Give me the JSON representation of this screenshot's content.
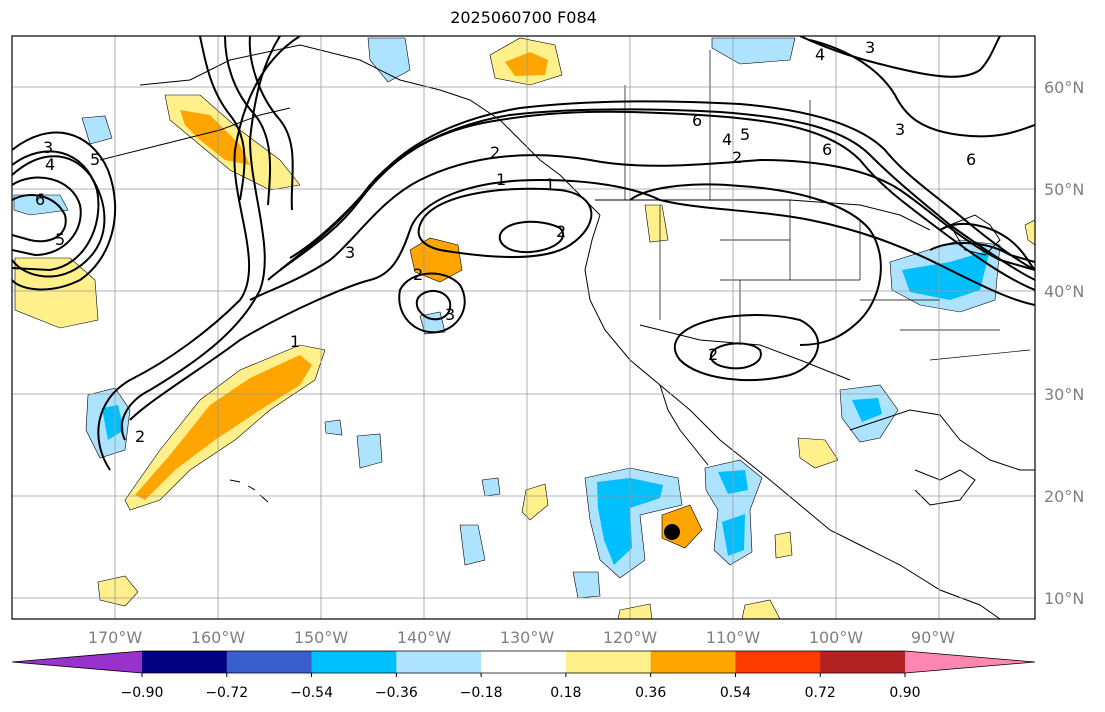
{
  "title": "2025060700 F084",
  "axes": {
    "lon_labels": [
      "170°W",
      "160°W",
      "150°W",
      "140°W",
      "130°W",
      "120°W",
      "110°W",
      "100°W",
      "90°W"
    ],
    "lat_labels": [
      "60°N",
      "50°N",
      "40°N",
      "30°N",
      "20°N",
      "10°N"
    ]
  },
  "colorbar": {
    "ticks": [
      "−0.90",
      "−0.72",
      "−0.54",
      "−0.36",
      "−0.18",
      "0.18",
      "0.36",
      "0.54",
      "0.72",
      "0.90"
    ],
    "colors": [
      "#9932cc",
      "#000080",
      "#3a5fcd",
      "#00bfff",
      "#aee3ff",
      "#ffffff",
      "#fff08c",
      "#ffa500",
      "#ff3c00",
      "#b22222",
      "#ff86b0"
    ]
  },
  "contour_labels": [
    "6",
    "4",
    "5",
    "2",
    "1",
    "3",
    "6",
    "4",
    "5",
    "3",
    "6",
    "1",
    "3",
    "2",
    "2",
    "2",
    "3",
    "1",
    "2",
    "2",
    "5",
    "4",
    "3",
    "6"
  ],
  "markers": {
    "storm_center": "black-dot"
  }
}
